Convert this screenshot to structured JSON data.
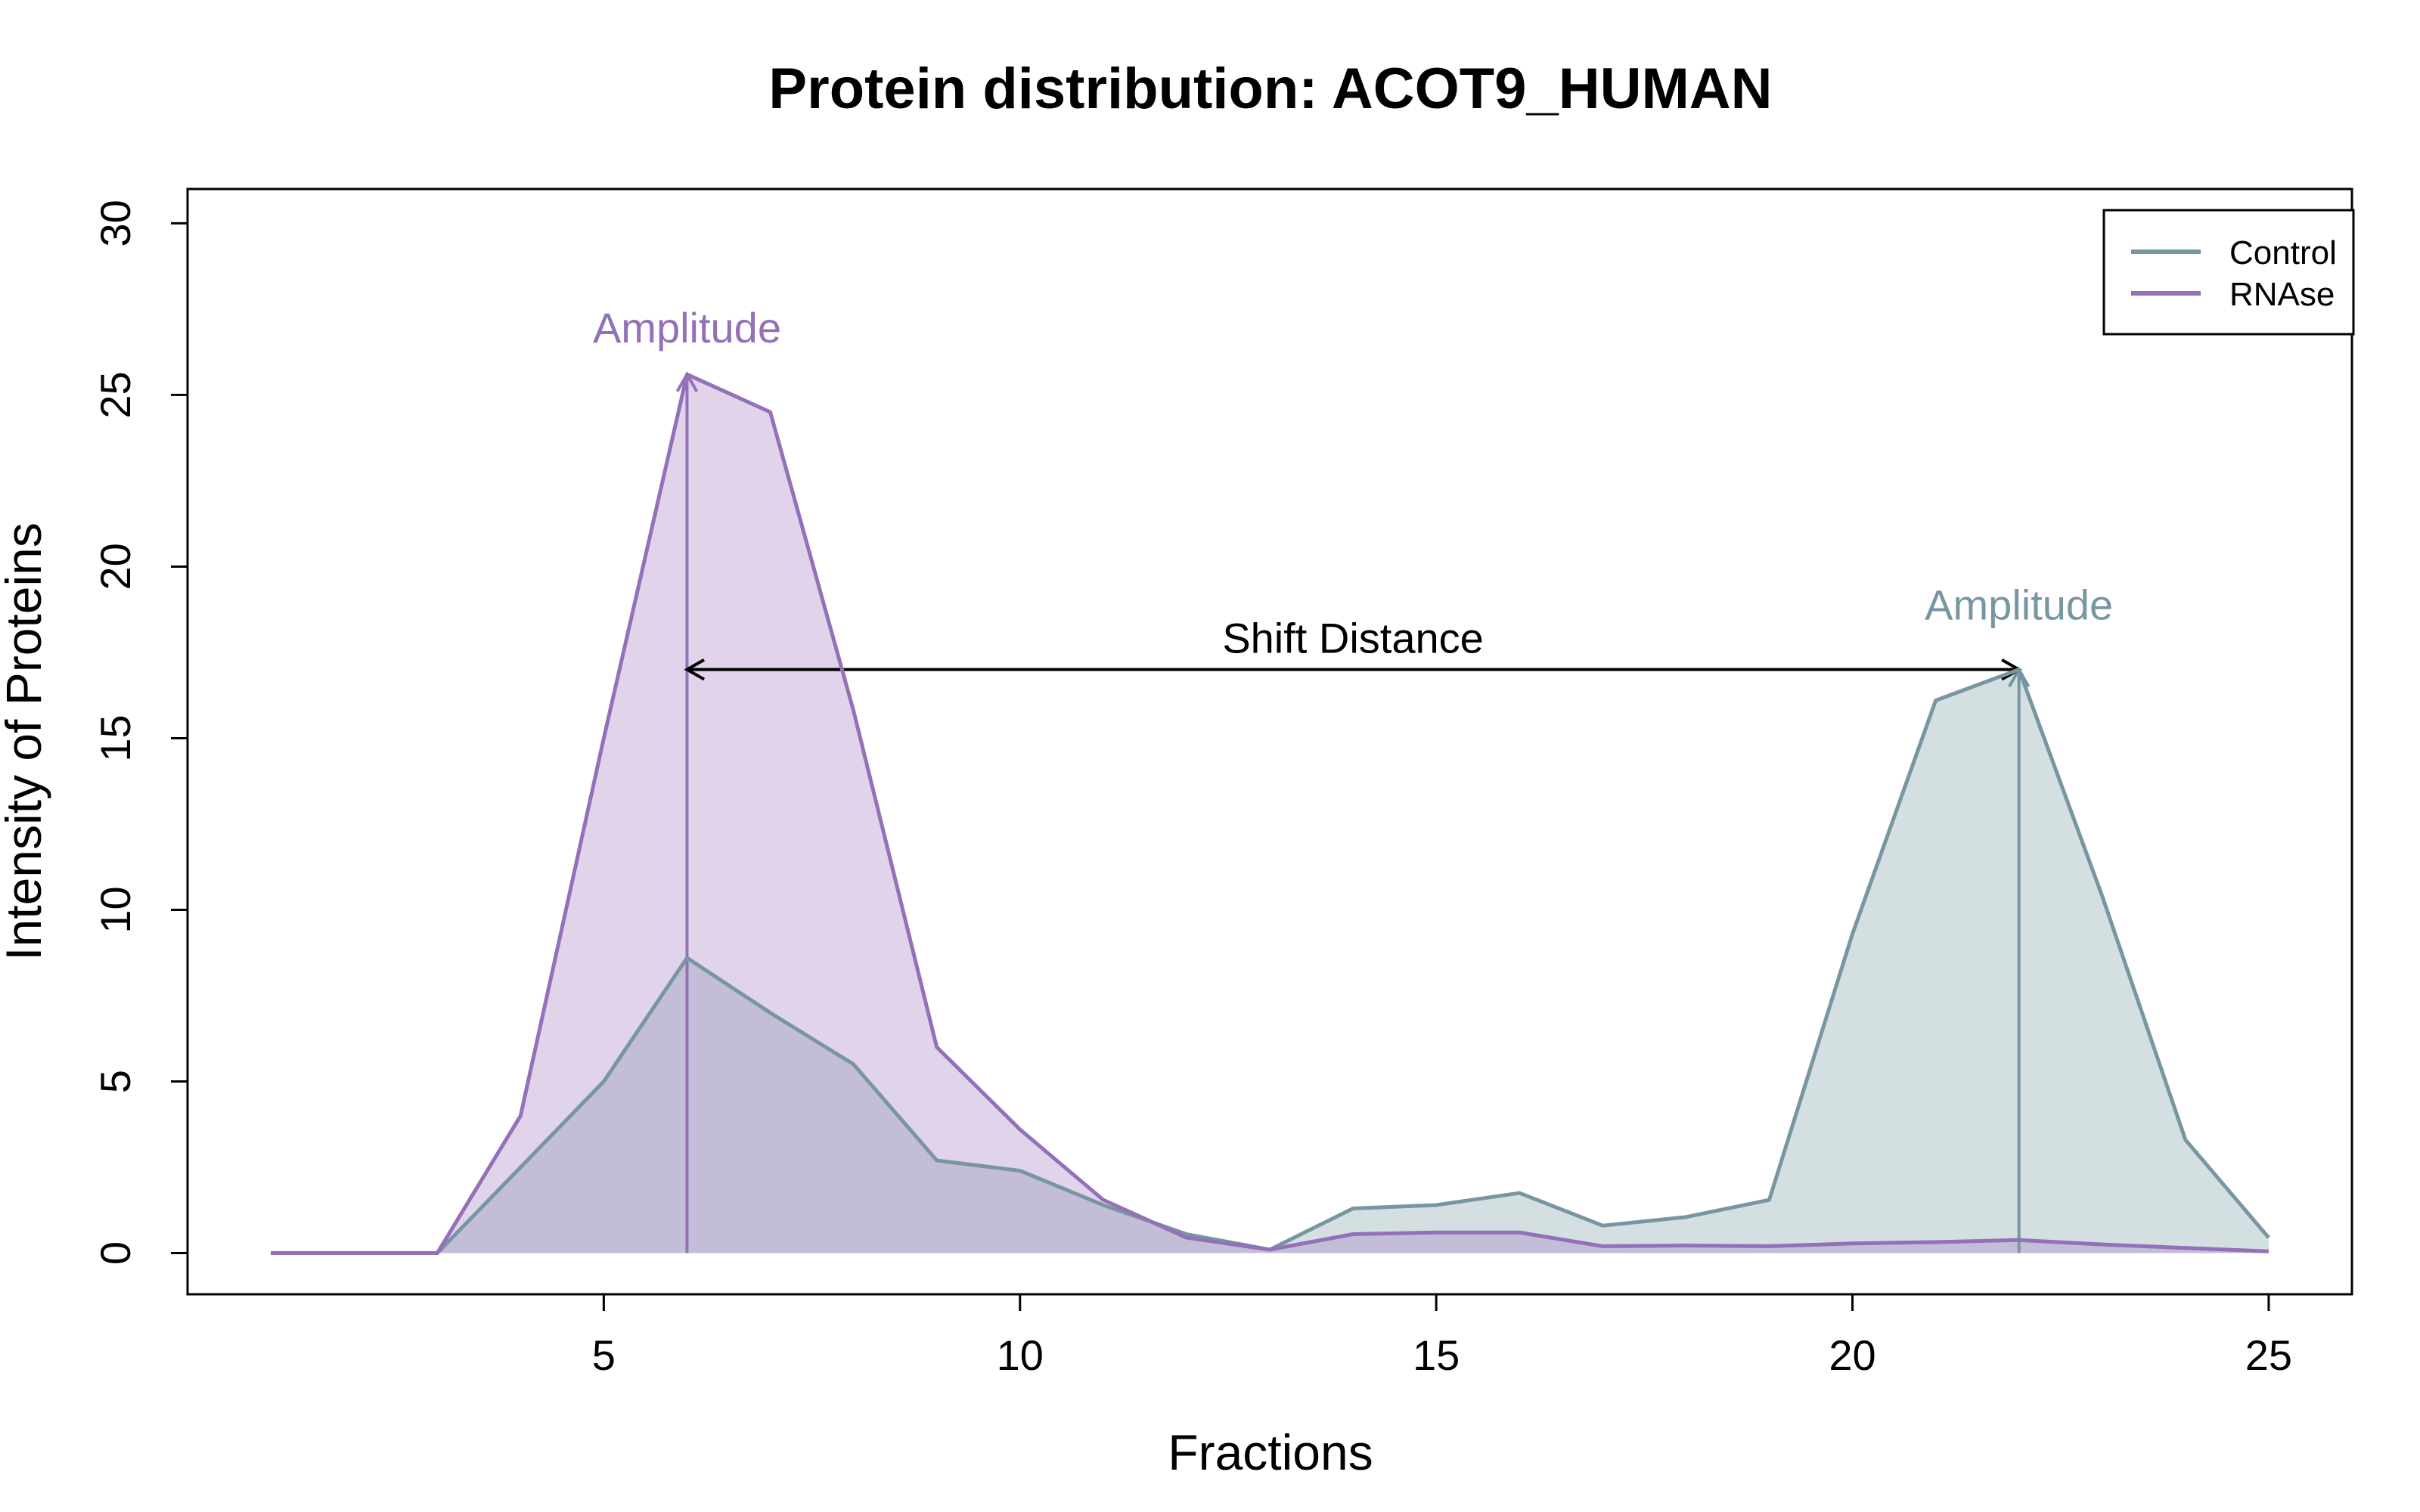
{
  "chart_data": {
    "type": "area",
    "title": "Protein distribution: ACOT9_HUMAN",
    "xlabel": "Fractions",
    "ylabel": "Intensity of Proteins",
    "xlim": [
      0,
      26
    ],
    "ylim": [
      -1.2,
      31
    ],
    "x_ticks": [
      5,
      10,
      15,
      20,
      25
    ],
    "y_ticks": [
      0,
      5,
      10,
      15,
      20,
      25,
      30
    ],
    "grid": false,
    "legend_position": "top-right",
    "x": [
      1,
      2,
      3,
      4,
      5,
      6,
      7,
      8,
      9,
      10,
      11,
      12,
      13,
      14,
      15,
      16,
      17,
      18,
      19,
      20,
      21,
      22,
      23,
      24,
      25
    ],
    "series": [
      {
        "name": "Control",
        "color": "#7896a2",
        "fill": "#d4dfe2",
        "values": [
          0,
          0,
          0,
          2.5,
          5.0,
          8.6,
          7.0,
          5.5,
          2.7,
          2.4,
          1.4,
          0.55,
          0.1,
          1.3,
          1.4,
          1.75,
          0.8,
          1.05,
          1.55,
          9.3,
          16.1,
          17.0,
          10.4,
          3.3,
          0.45
        ]
      },
      {
        "name": "RNAse",
        "color": "#9370b8",
        "fill": "#e1d4ea",
        "values": [
          0,
          0,
          0,
          4.0,
          15.0,
          25.6,
          24.5,
          15.8,
          6.0,
          3.6,
          1.55,
          0.45,
          0.1,
          0.55,
          0.6,
          0.6,
          0.2,
          0.22,
          0.2,
          0.28,
          0.32,
          0.38,
          0.25,
          0.15,
          0.05
        ]
      }
    ],
    "overlap_fill": "#c3bdd8",
    "annotations": {
      "rnase_amplitude": {
        "label": "Amplitude",
        "x": 6,
        "y": 25.6
      },
      "control_amplitude": {
        "label": "Amplitude",
        "x": 22,
        "y": 17.0
      },
      "shift_distance": {
        "label": "Shift Distance",
        "x_from": 6,
        "x_to": 22,
        "y": 17.0
      }
    }
  }
}
